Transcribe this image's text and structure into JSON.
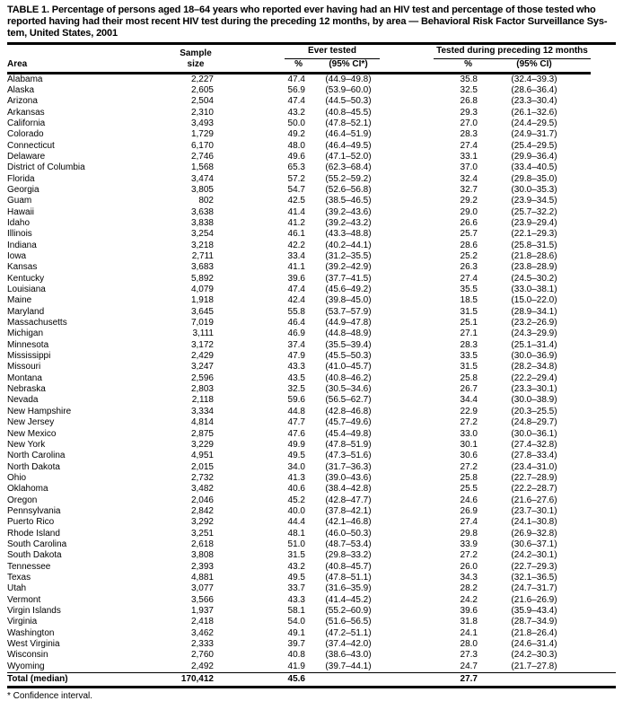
{
  "title_lines": [
    "TABLE 1. Percentage of persons aged 18–64 years who reported ever having had an HIV test and percentage of those tested who",
    "reported having had their most recent HIV test during the preceding 12 months, by area — Behavioral Risk Factor Surveillance Sys-",
    "tem, United States, 2001"
  ],
  "table": {
    "headers": {
      "area": "Area",
      "sample": "Sample\nsize",
      "ever_group": "Ever tested",
      "recent_group": "Tested during preceding 12 months",
      "ever_pct": "%",
      "ever_ci": "(95% CI*)",
      "recent_pct": "%",
      "recent_ci": "(95% CI)"
    },
    "rows": [
      {
        "area": "Alabama",
        "sample": "2,227",
        "ever_pct": "47.4",
        "ever_ci": "(44.9–49.8)",
        "recent_pct": "35.8",
        "recent_ci": "(32.4–39.3)"
      },
      {
        "area": "Alaska",
        "sample": "2,605",
        "ever_pct": "56.9",
        "ever_ci": "(53.9–60.0)",
        "recent_pct": "32.5",
        "recent_ci": "(28.6–36.4)"
      },
      {
        "area": "Arizona",
        "sample": "2,504",
        "ever_pct": "47.4",
        "ever_ci": "(44.5–50.3)",
        "recent_pct": "26.8",
        "recent_ci": "(23.3–30.4)"
      },
      {
        "area": "Arkansas",
        "sample": "2,310",
        "ever_pct": "43.2",
        "ever_ci": "(40.8–45.5)",
        "recent_pct": "29.3",
        "recent_ci": "(26.1–32.6)"
      },
      {
        "area": "California",
        "sample": "3,493",
        "ever_pct": "50.0",
        "ever_ci": "(47.8–52.1)",
        "recent_pct": "27.0",
        "recent_ci": "(24.4–29.5)"
      },
      {
        "area": "Colorado",
        "sample": "1,729",
        "ever_pct": "49.2",
        "ever_ci": "(46.4–51.9)",
        "recent_pct": "28.3",
        "recent_ci": "(24.9–31.7)"
      },
      {
        "area": "Connecticut",
        "sample": "6,170",
        "ever_pct": "48.0",
        "ever_ci": "(46.4–49.5)",
        "recent_pct": "27.4",
        "recent_ci": "(25.4–29.5)"
      },
      {
        "area": "Delaware",
        "sample": "2,746",
        "ever_pct": "49.6",
        "ever_ci": "(47.1–52.0)",
        "recent_pct": "33.1",
        "recent_ci": "(29.9–36.4)"
      },
      {
        "area": "District of Columbia",
        "sample": "1,568",
        "ever_pct": "65.3",
        "ever_ci": "(62.3–68.4)",
        "recent_pct": "37.0",
        "recent_ci": "(33.4–40.5)"
      },
      {
        "area": "Florida",
        "sample": "3,474",
        "ever_pct": "57.2",
        "ever_ci": "(55.2–59.2)",
        "recent_pct": "32.4",
        "recent_ci": "(29.8–35.0)"
      },
      {
        "area": "Georgia",
        "sample": "3,805",
        "ever_pct": "54.7",
        "ever_ci": "(52.6–56.8)",
        "recent_pct": "32.7",
        "recent_ci": "(30.0–35.3)"
      },
      {
        "area": "Guam",
        "sample": "802",
        "ever_pct": "42.5",
        "ever_ci": "(38.5–46.5)",
        "recent_pct": "29.2",
        "recent_ci": "(23.9–34.5)"
      },
      {
        "area": "Hawaii",
        "sample": "3,638",
        "ever_pct": "41.4",
        "ever_ci": "(39.2–43.6)",
        "recent_pct": "29.0",
        "recent_ci": "(25.7–32.2)"
      },
      {
        "area": "Idaho",
        "sample": "3,838",
        "ever_pct": "41.2",
        "ever_ci": "(39.2–43.2)",
        "recent_pct": "26.6",
        "recent_ci": "(23.9–29.4)"
      },
      {
        "area": "Illinois",
        "sample": "3,254",
        "ever_pct": "46.1",
        "ever_ci": "(43.3–48.8)",
        "recent_pct": "25.7",
        "recent_ci": "(22.1–29.3)"
      },
      {
        "area": "Indiana",
        "sample": "3,218",
        "ever_pct": "42.2",
        "ever_ci": "(40.2–44.1)",
        "recent_pct": "28.6",
        "recent_ci": "(25.8–31.5)"
      },
      {
        "area": "Iowa",
        "sample": "2,711",
        "ever_pct": "33.4",
        "ever_ci": "(31.2–35.5)",
        "recent_pct": "25.2",
        "recent_ci": "(21.8–28.6)"
      },
      {
        "area": "Kansas",
        "sample": "3,683",
        "ever_pct": "41.1",
        "ever_ci": "(39.2–42.9)",
        "recent_pct": "26.3",
        "recent_ci": "(23.8–28.9)"
      },
      {
        "area": "Kentucky",
        "sample": "5,892",
        "ever_pct": "39.6",
        "ever_ci": "(37.7–41.5)",
        "recent_pct": "27.4",
        "recent_ci": "(24.5–30.2)"
      },
      {
        "area": "Louisiana",
        "sample": "4,079",
        "ever_pct": "47.4",
        "ever_ci": "(45.6–49.2)",
        "recent_pct": "35.5",
        "recent_ci": "(33.0–38.1)"
      },
      {
        "area": "Maine",
        "sample": "1,918",
        "ever_pct": "42.4",
        "ever_ci": "(39.8–45.0)",
        "recent_pct": "18.5",
        "recent_ci": "(15.0–22.0)"
      },
      {
        "area": "Maryland",
        "sample": "3,645",
        "ever_pct": "55.8",
        "ever_ci": "(53.7–57.9)",
        "recent_pct": "31.5",
        "recent_ci": "(28.9–34.1)"
      },
      {
        "area": "Massachusetts",
        "sample": "7,019",
        "ever_pct": "46.4",
        "ever_ci": "(44.9–47.8)",
        "recent_pct": "25.1",
        "recent_ci": "(23.2–26.9)"
      },
      {
        "area": "Michigan",
        "sample": "3,111",
        "ever_pct": "46.9",
        "ever_ci": "(44.8–48.9)",
        "recent_pct": "27.1",
        "recent_ci": "(24.3–29.9)"
      },
      {
        "area": "Minnesota",
        "sample": "3,172",
        "ever_pct": "37.4",
        "ever_ci": "(35.5–39.4)",
        "recent_pct": "28.3",
        "recent_ci": "(25.1–31.4)"
      },
      {
        "area": "Mississippi",
        "sample": "2,429",
        "ever_pct": "47.9",
        "ever_ci": "(45.5–50.3)",
        "recent_pct": "33.5",
        "recent_ci": "(30.0–36.9)"
      },
      {
        "area": "Missouri",
        "sample": "3,247",
        "ever_pct": "43.3",
        "ever_ci": "(41.0–45.7)",
        "recent_pct": "31.5",
        "recent_ci": "(28.2–34.8)"
      },
      {
        "area": "Montana",
        "sample": "2,596",
        "ever_pct": "43.5",
        "ever_ci": "(40.8–46.2)",
        "recent_pct": "25.8",
        "recent_ci": "(22.2–29.4)"
      },
      {
        "area": "Nebraska",
        "sample": "2,803",
        "ever_pct": "32.5",
        "ever_ci": "(30.5–34.6)",
        "recent_pct": "26.7",
        "recent_ci": "(23.3–30.1)"
      },
      {
        "area": "Nevada",
        "sample": "2,118",
        "ever_pct": "59.6",
        "ever_ci": "(56.5–62.7)",
        "recent_pct": "34.4",
        "recent_ci": "(30.0–38.9)"
      },
      {
        "area": "New Hampshire",
        "sample": "3,334",
        "ever_pct": "44.8",
        "ever_ci": "(42.8–46.8)",
        "recent_pct": "22.9",
        "recent_ci": "(20.3–25.5)"
      },
      {
        "area": "New Jersey",
        "sample": "4,814",
        "ever_pct": "47.7",
        "ever_ci": "(45.7–49.6)",
        "recent_pct": "27.2",
        "recent_ci": "(24.8–29.7)"
      },
      {
        "area": "New Mexico",
        "sample": "2,875",
        "ever_pct": "47.6",
        "ever_ci": "(45.4–49.8)",
        "recent_pct": "33.0",
        "recent_ci": "(30.0–36.1)"
      },
      {
        "area": "New York",
        "sample": "3,229",
        "ever_pct": "49.9",
        "ever_ci": "(47.8–51.9)",
        "recent_pct": "30.1",
        "recent_ci": "(27.4–32.8)"
      },
      {
        "area": "North Carolina",
        "sample": "4,951",
        "ever_pct": "49.5",
        "ever_ci": "(47.3–51.6)",
        "recent_pct": "30.6",
        "recent_ci": "(27.8–33.4)"
      },
      {
        "area": "North Dakota",
        "sample": "2,015",
        "ever_pct": "34.0",
        "ever_ci": "(31.7–36.3)",
        "recent_pct": "27.2",
        "recent_ci": "(23.4–31.0)"
      },
      {
        "area": "Ohio",
        "sample": "2,732",
        "ever_pct": "41.3",
        "ever_ci": "(39.0–43.6)",
        "recent_pct": "25.8",
        "recent_ci": "(22.7–28.9)"
      },
      {
        "area": "Oklahoma",
        "sample": "3,482",
        "ever_pct": "40.6",
        "ever_ci": "(38.4–42.8)",
        "recent_pct": "25.5",
        "recent_ci": "(22.2–28.7)"
      },
      {
        "area": "Oregon",
        "sample": "2,046",
        "ever_pct": "45.2",
        "ever_ci": "(42.8–47.7)",
        "recent_pct": "24.6",
        "recent_ci": "(21.6–27.6)"
      },
      {
        "area": "Pennsylvania",
        "sample": "2,842",
        "ever_pct": "40.0",
        "ever_ci": "(37.8–42.1)",
        "recent_pct": "26.9",
        "recent_ci": "(23.7–30.1)"
      },
      {
        "area": "Puerto Rico",
        "sample": "3,292",
        "ever_pct": "44.4",
        "ever_ci": "(42.1–46.8)",
        "recent_pct": "27.4",
        "recent_ci": "(24.1–30.8)"
      },
      {
        "area": "Rhode Island",
        "sample": "3,251",
        "ever_pct": "48.1",
        "ever_ci": "(46.0–50.3)",
        "recent_pct": "29.8",
        "recent_ci": "(26.9–32.8)"
      },
      {
        "area": "South Carolina",
        "sample": "2,618",
        "ever_pct": "51.0",
        "ever_ci": "(48.7–53.4)",
        "recent_pct": "33.9",
        "recent_ci": "(30.6–37.1)"
      },
      {
        "area": "South Dakota",
        "sample": "3,808",
        "ever_pct": "31.5",
        "ever_ci": "(29.8–33.2)",
        "recent_pct": "27.2",
        "recent_ci": "(24.2–30.1)"
      },
      {
        "area": "Tennessee",
        "sample": "2,393",
        "ever_pct": "43.2",
        "ever_ci": "(40.8–45.7)",
        "recent_pct": "26.0",
        "recent_ci": "(22.7–29.3)"
      },
      {
        "area": "Texas",
        "sample": "4,881",
        "ever_pct": "49.5",
        "ever_ci": "(47.8–51.1)",
        "recent_pct": "34.3",
        "recent_ci": "(32.1–36.5)"
      },
      {
        "area": "Utah",
        "sample": "3,077",
        "ever_pct": "33.7",
        "ever_ci": "(31.6–35.9)",
        "recent_pct": "28.2",
        "recent_ci": "(24.7–31.7)"
      },
      {
        "area": "Vermont",
        "sample": "3,566",
        "ever_pct": "43.3",
        "ever_ci": "(41.4–45.2)",
        "recent_pct": "24.2",
        "recent_ci": "(21.6–26.9)"
      },
      {
        "area": "Virgin Islands",
        "sample": "1,937",
        "ever_pct": "58.1",
        "ever_ci": "(55.2–60.9)",
        "recent_pct": "39.6",
        "recent_ci": "(35.9–43.4)"
      },
      {
        "area": "Virginia",
        "sample": "2,418",
        "ever_pct": "54.0",
        "ever_ci": "(51.6–56.5)",
        "recent_pct": "31.8",
        "recent_ci": "(28.7–34.9)"
      },
      {
        "area": "Washington",
        "sample": "3,462",
        "ever_pct": "49.1",
        "ever_ci": "(47.2–51.1)",
        "recent_pct": "24.1",
        "recent_ci": "(21.8–26.4)"
      },
      {
        "area": "West Virginia",
        "sample": "2,333",
        "ever_pct": "39.7",
        "ever_ci": "(37.4–42.0)",
        "recent_pct": "28.0",
        "recent_ci": "(24.6–31.4)"
      },
      {
        "area": "Wisconsin",
        "sample": "2,760",
        "ever_pct": "40.8",
        "ever_ci": "(38.6–43.0)",
        "recent_pct": "27.3",
        "recent_ci": "(24.2–30.3)"
      },
      {
        "area": "Wyoming",
        "sample": "2,492",
        "ever_pct": "41.9",
        "ever_ci": "(39.7–44.1)",
        "recent_pct": "24.7",
        "recent_ci": "(21.7–27.8)"
      }
    ],
    "total": {
      "area": "Total (median)",
      "sample": "170,412",
      "ever_pct": "45.6",
      "ever_ci": "",
      "recent_pct": "27.7",
      "recent_ci": ""
    }
  },
  "footnote": "* Confidence interval."
}
